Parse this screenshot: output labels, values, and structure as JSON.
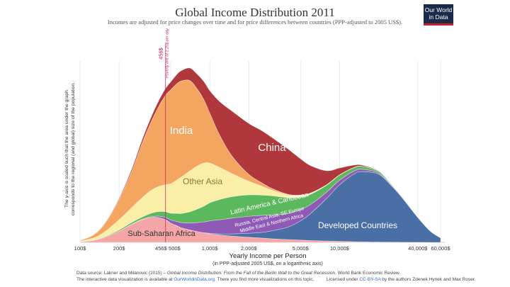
{
  "header": {
    "title": "Global Income Distribution 2011",
    "subtitle": "Incomes are adjusted for price changes over time and for price differences between countries (PPP-adjusted to 2005 US$).",
    "logo_line1": "Our World",
    "logo_line2": "in Data"
  },
  "chart_data": {
    "type": "area",
    "stacked": true,
    "title": "Global Income Distribution 2011",
    "subtitle": "Incomes are adjusted for price changes over time and for price differences between countries (PPP-adjusted to 2005 US$).",
    "xlabel": "Yearly Income per Person",
    "xlabel_sub": "(in PPP-adjusted 2005 US$, on a logarithmic axis)",
    "ylabel_line1": "The y-axis is scaled such that the area under the graph",
    "ylabel_line2": "corresponds to the regional (and global) size of the population.",
    "x_scale": "log",
    "xlim": [
      100,
      60000
    ],
    "x_ticks": [
      {
        "value": 100,
        "label": "100$"
      },
      {
        "value": 200,
        "label": "200$"
      },
      {
        "value": 456,
        "label": "456$",
        "highlight": true
      },
      {
        "value": 500,
        "label": "500$"
      },
      {
        "value": 1000,
        "label": "1,000$"
      },
      {
        "value": 2000,
        "label": "2,000$"
      },
      {
        "value": 5000,
        "label": "5,000$"
      },
      {
        "value": 10000,
        "label": "10,000$"
      },
      {
        "value": 40000,
        "label": "40,000$"
      },
      {
        "value": 60000,
        "label": "60,000$"
      }
    ],
    "grid": true,
    "poverty_line": {
      "value": 456,
      "label_value": "456$",
      "label_text": "Poverty line of 1.25$ per day"
    },
    "x": [
      100,
      130,
      160,
      200,
      250,
      300,
      350,
      400,
      456,
      500,
      550,
      600,
      700,
      800,
      900,
      1000,
      1200,
      1500,
      2000,
      2500,
      3000,
      4000,
      5000,
      6000,
      8000,
      10000,
      13000,
      15000,
      20000,
      25000,
      30000,
      40000,
      50000,
      60000
    ],
    "series": [
      {
        "name": "Sub-Saharan Africa",
        "color": "#f4a6a6",
        "label_color": "#333333",
        "values": [
          0.5,
          2,
          5,
          10,
          16,
          20,
          22,
          22,
          20,
          17,
          15,
          13,
          11,
          9.5,
          8.5,
          7.5,
          6.5,
          5.5,
          4.5,
          3.8,
          3.2,
          2.5,
          2,
          1.6,
          1.2,
          0.9,
          0.6,
          0.5,
          0.3,
          0.2,
          0.1,
          0.05,
          0,
          0
        ]
      },
      {
        "name": "Developed Countries",
        "color": "#4a6fa5",
        "label_color": "#ffffff",
        "values": [
          0,
          0,
          0,
          0,
          0,
          0,
          0,
          0,
          0,
          0,
          0,
          0,
          0,
          0,
          0,
          0.5,
          1,
          2,
          3.5,
          5,
          7,
          11,
          17,
          24,
          38,
          50,
          60,
          62,
          60,
          50,
          40,
          22,
          10,
          4
        ]
      },
      {
        "name": "Russia, Central Asia, SE Europe & Middle East & Northern Africa",
        "color": "#8e5ab5",
        "label_color": "#ffffff",
        "values": [
          0,
          0,
          0,
          0,
          0.1,
          0.3,
          0.6,
          1.2,
          2,
          2.8,
          3.6,
          4.5,
          6,
          8,
          9.5,
          11,
          12.5,
          14,
          15,
          15,
          14,
          12,
          10,
          8,
          5.5,
          4,
          2.5,
          2,
          1,
          0.5,
          0.3,
          0.1,
          0,
          0
        ]
      },
      {
        "name": "Latin America & Caribbean",
        "color": "#5cb85c",
        "label_color": "#ffffff",
        "values": [
          0.1,
          0.3,
          0.6,
          1,
          1.5,
          2,
          3,
          4,
          5,
          6,
          7,
          8,
          10,
          12,
          14,
          16,
          18,
          19,
          19,
          18,
          17,
          14,
          11,
          9,
          6,
          4.5,
          3,
          2.5,
          1.5,
          0.8,
          0.5,
          0.2,
          0,
          0
        ]
      },
      {
        "name": "Other Asia",
        "color": "#fbeea6",
        "label_color": "#8a7a3a",
        "values": [
          0.5,
          2,
          5,
          9,
          13,
          17,
          20,
          22,
          24,
          26,
          29,
          32,
          36,
          38,
          38,
          35,
          28,
          20,
          12,
          8,
          5,
          2.5,
          1.5,
          1,
          0.5,
          0.3,
          0.2,
          0.1,
          0,
          0,
          0,
          0,
          0,
          0
        ]
      },
      {
        "name": "India",
        "color": "#f4a660",
        "label_color": "#ffffff",
        "values": [
          0.5,
          3,
          8,
          18,
          32,
          48,
          60,
          70,
          79,
          83,
          85,
          85,
          80,
          68,
          56,
          44,
          28,
          15,
          6,
          3,
          1.5,
          0.5,
          0.3,
          0.1,
          0,
          0,
          0,
          0,
          0,
          0,
          0,
          0,
          0,
          0
        ]
      },
      {
        "name": "China",
        "color": "#b0383d",
        "label_color": "#ffffff",
        "values": [
          0,
          0.2,
          0.5,
          1,
          2,
          3,
          4,
          5,
          6,
          7,
          8,
          9,
          11,
          13,
          16,
          20,
          30,
          40,
          45,
          46,
          45,
          40,
          32,
          24,
          12,
          6,
          2,
          1,
          0.3,
          0,
          0,
          0,
          0,
          0
        ]
      }
    ]
  },
  "footer": {
    "line1_prefix": "Data source: Lakner and Milanovic (2015) – ",
    "line1_title": "Global Income Distribution: From the Fall of the Berlin Wall to the Great Recession",
    "line1_suffix": ", World Bank Economic Review.",
    "line2_prefix": "The interactive data visualization is available at ",
    "line2_link": "OurWorldinData.org",
    "line2_suffix": ". There you find more visualizations on this topic.",
    "license_prefix": "Licensed under ",
    "license_link": "CC-BY-SA",
    "license_suffix": " by the authors Zdenek Hynek and Max Roser."
  }
}
